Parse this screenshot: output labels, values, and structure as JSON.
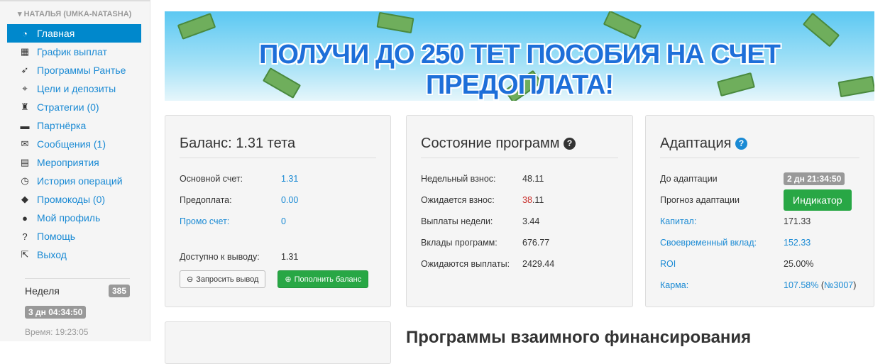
{
  "sidebar": {
    "user": "НАТАЛЬЯ (UMKA-NATASHA)",
    "items": [
      {
        "label": "Главная",
        "icon": "dashboard-icon",
        "glyph": "◔"
      },
      {
        "label": "График выплат",
        "icon": "calendar-icon",
        "glyph": "▦"
      },
      {
        "label": "Программы Рантье",
        "icon": "rocket-icon",
        "glyph": "➶"
      },
      {
        "label": "Цели и депозиты",
        "icon": "crosshairs-icon",
        "glyph": "⌖"
      },
      {
        "label": "Стратегии (0)",
        "icon": "chess-rook-icon",
        "glyph": "♜"
      },
      {
        "label": "Партнёрка",
        "icon": "briefcase-icon",
        "glyph": "▬"
      },
      {
        "label": "Сообщения (1)",
        "icon": "envelope-icon",
        "glyph": "✉"
      },
      {
        "label": "Мероприятия",
        "icon": "film-icon",
        "glyph": "▤"
      },
      {
        "label": "История операций",
        "icon": "clock-icon",
        "glyph": "◷"
      },
      {
        "label": "Промокоды (0)",
        "icon": "tag-icon",
        "glyph": "◆"
      },
      {
        "label": "Мой профиль",
        "icon": "user-icon",
        "glyph": "●"
      },
      {
        "label": "Помощь",
        "icon": "question-circle-icon",
        "glyph": "?"
      },
      {
        "label": "Выход",
        "icon": "share-square-icon",
        "glyph": "⇱"
      }
    ],
    "week_label": "Неделя",
    "week_value": "385",
    "timer": "3 дн 04:34:50",
    "time": "Время: 19:23:05"
  },
  "banner": {
    "text": "ПОЛУЧИ ДО 250 ТЕТ ПОСОБИЯ НА СЧЕТ ПРЕДОПЛАТА!"
  },
  "balance": {
    "title": "Баланс: 1.31 тета",
    "rows": [
      {
        "k": "Основной счет:",
        "v": "1.31"
      },
      {
        "k": "Предоплата:",
        "v": "0.00"
      },
      {
        "k": "Промо счет:",
        "v": "0"
      }
    ],
    "available_label": "Доступно к выводу:",
    "available_value": "1.31",
    "withdraw": "Запросить вывод",
    "topup": "Пополнить баланс"
  },
  "programs": {
    "title": "Состояние программ",
    "rows": [
      {
        "k": "Недельный взнос:",
        "v": "48.11"
      },
      {
        "k": "Ожидается взнос:",
        "v1": "38",
        "v2": ".11"
      },
      {
        "k": "Выплаты недели:",
        "v": "3.44"
      },
      {
        "k": "Вклады программ:",
        "v": "676.77"
      },
      {
        "k": "Ожидаются выплаты:",
        "v": "2429.44"
      }
    ]
  },
  "adaptation": {
    "title": "Адаптация",
    "until_label": "До адаптации",
    "until_value": "2 дн 21:34:50",
    "forecast_label": "Прогноз адаптации",
    "indicator": "Индикатор",
    "capital_label": "Капитал:",
    "capital_value": "171.33",
    "timely_label": "Своевременный вклад:",
    "timely_value": "152.33",
    "roi_label": "ROI",
    "roi_value": "25.00%",
    "karma_label": "Карма:",
    "karma_value": "107.58%",
    "karma_rank": "№3007"
  },
  "bottom_heading": "Программы взаимного финансирования"
}
